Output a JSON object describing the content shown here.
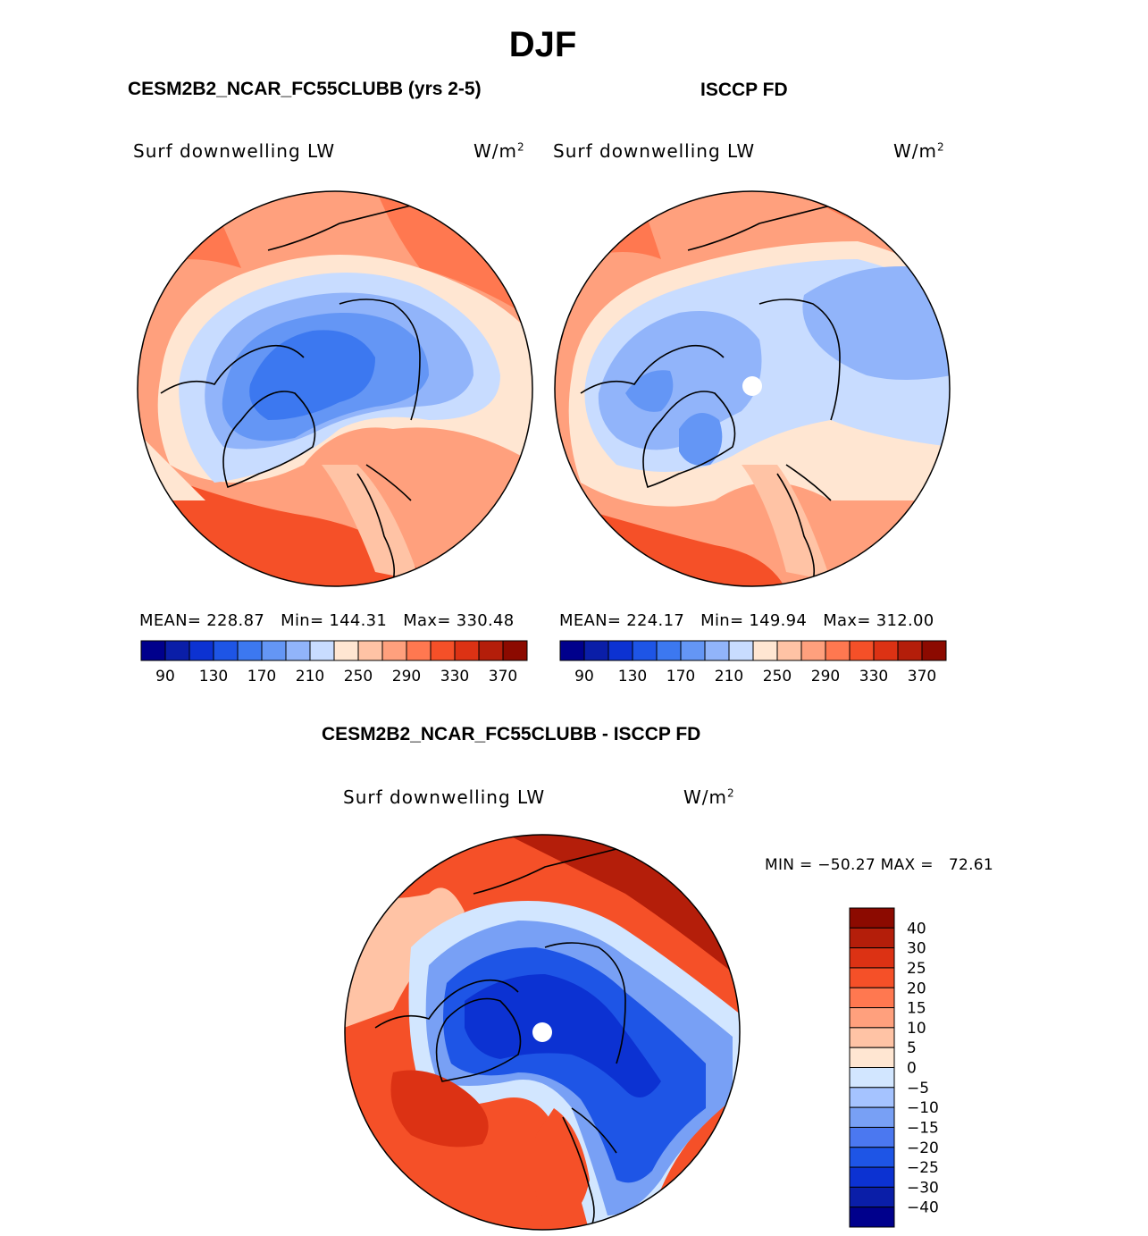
{
  "season": "DJF",
  "panels": [
    {
      "title": "CESM2B2_NCAR_FC55CLUBB (yrs 2-5)",
      "variable": "Surf downwelling LW",
      "units": "W/m",
      "units_exp": "2",
      "stats": "MEAN= 228.87   Min= 144.31   Max= 330.48",
      "colorbar_labels": [
        "90",
        "130",
        "170",
        "210",
        "250",
        "290",
        "330",
        "370"
      ]
    },
    {
      "title": "ISCCP FD",
      "variable": "Surf downwelling LW",
      "units": "W/m",
      "units_exp": "2",
      "stats": "MEAN= 224.17   Min= 149.94   Max= 312.00",
      "colorbar_labels": [
        "90",
        "130",
        "170",
        "210",
        "250",
        "290",
        "330",
        "370"
      ]
    }
  ],
  "abs_colors": [
    "#00008c",
    "#0a1ea8",
    "#0c32d2",
    "#1e55e6",
    "#3c78f0",
    "#6496f5",
    "#91b4fa",
    "#c8dcff",
    "#ffe6d2",
    "#ffc3a5",
    "#ffa07d",
    "#ff7850",
    "#f55028",
    "#dc3214",
    "#b41e0a",
    "#8c0a00"
  ],
  "diff": {
    "title": "CESM2B2_NCAR_FC55CLUBB - ISCCP FD",
    "variable": "Surf downwelling LW",
    "units": "W/m",
    "units_exp": "2",
    "minmax": "MIN = −50.27 MAX =   72.61",
    "colorbar_labels": [
      "40",
      "30",
      "25",
      "20",
      "15",
      "10",
      "5",
      "0",
      "−5",
      "−10",
      "−15",
      "−20",
      "−25",
      "−30",
      "−40"
    ],
    "colors": [
      "#8c0a00",
      "#b41e0a",
      "#dc3214",
      "#f55028",
      "#ff7850",
      "#ffa07d",
      "#ffc3a5",
      "#ffe6d2",
      "#d2e6ff",
      "#a5c3ff",
      "#78a0f5",
      "#4b78f0",
      "#1e55e6",
      "#0c32d2",
      "#0a1ea8",
      "#00008c"
    ]
  }
}
